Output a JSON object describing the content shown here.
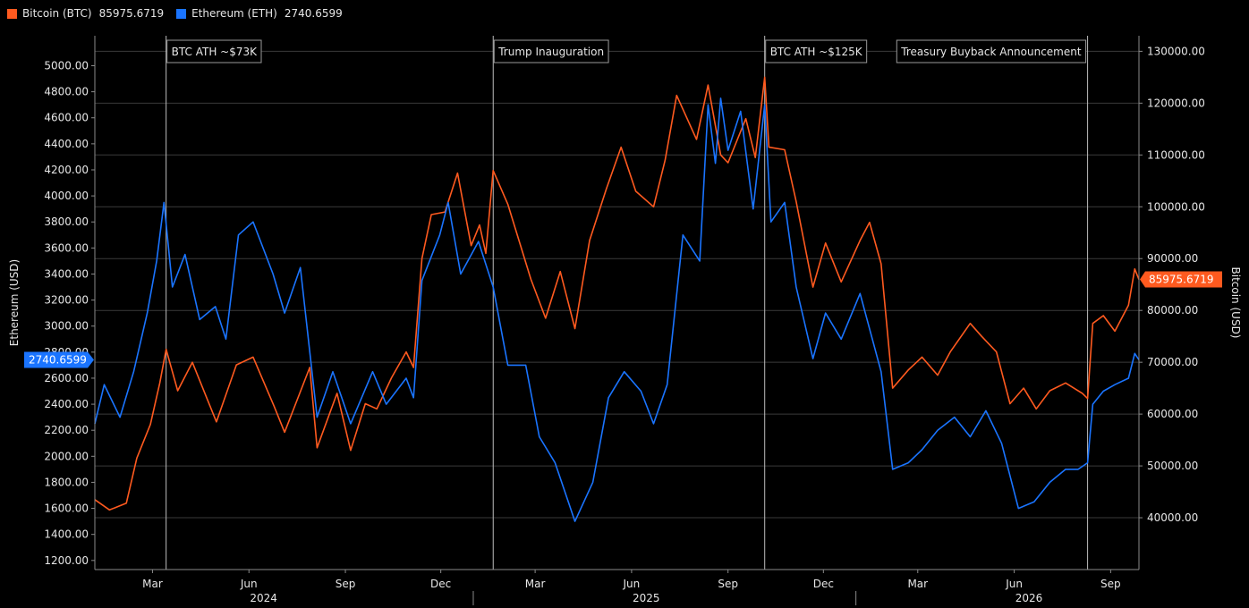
{
  "legend": {
    "btc": {
      "label": "Bitcoin (BTC)",
      "value": "85975.6719",
      "color": "#ff5a1f"
    },
    "eth": {
      "label": "Ethereum (ETH)",
      "value": "2740.6599",
      "color": "#1a74ff"
    }
  },
  "chart_data": {
    "type": "line",
    "left_axis": {
      "label": "Ethereum (USD)",
      "range": [
        1130,
        5230
      ],
      "ticks": [
        "1200.00",
        "1400.00",
        "1600.00",
        "1800.00",
        "2000.00",
        "2200.00",
        "2400.00",
        "2600.00",
        "2800.00",
        "3000.00",
        "3200.00",
        "3400.00",
        "3600.00",
        "3800.00",
        "4000.00",
        "4200.00",
        "4400.00",
        "4600.00",
        "4800.00",
        "5000.00"
      ],
      "last_value_label": "2740.6599"
    },
    "right_axis": {
      "label": "Bitcoin (USD)",
      "range": [
        30000,
        133000
      ],
      "ticks": [
        "40000.00",
        "50000.00",
        "60000.00",
        "70000.00",
        "80000.00",
        "90000.00",
        "100000.00",
        "110000.00",
        "120000.00",
        "130000.00"
      ],
      "last_value_label": "85975.6719"
    },
    "x_axis": {
      "start": "2024-01-06",
      "end": "2026-09-28",
      "month_labels": [
        {
          "label": "Mar",
          "date": "2024-03-01"
        },
        {
          "label": "Jun",
          "date": "2024-06-01"
        },
        {
          "label": "Sep",
          "date": "2024-09-01"
        },
        {
          "label": "Dec",
          "date": "2024-12-01"
        },
        {
          "label": "Mar",
          "date": "2025-03-01"
        },
        {
          "label": "Jun",
          "date": "2025-06-01"
        },
        {
          "label": "Sep",
          "date": "2025-09-01"
        },
        {
          "label": "Dec",
          "date": "2025-12-01"
        },
        {
          "label": "Mar",
          "date": "2026-03-01"
        },
        {
          "label": "Jun",
          "date": "2026-06-01"
        },
        {
          "label": "Sep",
          "date": "2026-09-01"
        }
      ],
      "year_labels": [
        {
          "label": "2024",
          "date": "2024-06-15"
        },
        {
          "label": "2025",
          "date": "2025-06-15"
        },
        {
          "label": "2026",
          "date": "2026-06-15"
        }
      ],
      "year_separators": [
        "2025-01-01",
        "2026-01-01"
      ]
    },
    "grid": true,
    "annotations": [
      {
        "label": "BTC ATH ~$73K",
        "date": "2024-03-14",
        "text_side": "right"
      },
      {
        "label": "Trump Inauguration",
        "date": "2025-01-20",
        "text_side": "right"
      },
      {
        "label": "BTC ATH ~$125K",
        "date": "2025-10-06",
        "text_side": "right"
      },
      {
        "label": "Treasury Buyback Announcement",
        "date": "2026-08-10",
        "text_side": "left"
      }
    ],
    "series": [
      {
        "name": "Bitcoin (BTC)",
        "axis": "right",
        "color": "#ff5a1f",
        "points": [
          [
            "2024-01-06",
            43500
          ],
          [
            "2024-01-20",
            41500
          ],
          [
            "2024-02-05",
            42800
          ],
          [
            "2024-02-15",
            51500
          ],
          [
            "2024-02-28",
            58000
          ],
          [
            "2024-03-08",
            66000
          ],
          [
            "2024-03-14",
            72500
          ],
          [
            "2024-03-25",
            64500
          ],
          [
            "2024-04-08",
            70000
          ],
          [
            "2024-04-20",
            64000
          ],
          [
            "2024-05-01",
            58500
          ],
          [
            "2024-05-20",
            69500
          ],
          [
            "2024-06-05",
            71000
          ],
          [
            "2024-06-25",
            61500
          ],
          [
            "2024-07-05",
            56500
          ],
          [
            "2024-07-29",
            69000
          ],
          [
            "2024-08-05",
            53500
          ],
          [
            "2024-08-24",
            64000
          ],
          [
            "2024-09-06",
            53000
          ],
          [
            "2024-09-20",
            62000
          ],
          [
            "2024-10-01",
            61000
          ],
          [
            "2024-10-15",
            67000
          ],
          [
            "2024-10-29",
            72000
          ],
          [
            "2024-11-05",
            69000
          ],
          [
            "2024-11-13",
            90000
          ],
          [
            "2024-11-22",
            98500
          ],
          [
            "2024-12-05",
            99000
          ],
          [
            "2024-12-17",
            106500
          ],
          [
            "2024-12-30",
            92500
          ],
          [
            "2025-01-07",
            96500
          ],
          [
            "2025-01-13",
            91000
          ],
          [
            "2025-01-20",
            107000
          ],
          [
            "2025-02-03",
            100500
          ],
          [
            "2025-02-25",
            86000
          ],
          [
            "2025-03-11",
            78500
          ],
          [
            "2025-03-25",
            87500
          ],
          [
            "2025-04-08",
            76500
          ],
          [
            "2025-04-22",
            93500
          ],
          [
            "2025-05-08",
            103500
          ],
          [
            "2025-05-22",
            111500
          ],
          [
            "2025-06-05",
            103000
          ],
          [
            "2025-06-22",
            100000
          ],
          [
            "2025-07-03",
            109000
          ],
          [
            "2025-07-14",
            121500
          ],
          [
            "2025-08-02",
            113000
          ],
          [
            "2025-08-13",
            123500
          ],
          [
            "2025-08-25",
            110000
          ],
          [
            "2025-09-01",
            108500
          ],
          [
            "2025-09-18",
            117000
          ],
          [
            "2025-09-27",
            109500
          ],
          [
            "2025-10-06",
            125000
          ],
          [
            "2025-10-10",
            111500
          ],
          [
            "2025-10-25",
            111000
          ],
          [
            "2025-11-05",
            101000
          ],
          [
            "2025-11-21",
            84500
          ],
          [
            "2025-12-03",
            93000
          ],
          [
            "2025-12-18",
            85500
          ],
          [
            "2026-01-05",
            93500
          ],
          [
            "2026-01-14",
            97000
          ],
          [
            "2026-01-25",
            89000
          ],
          [
            "2026-02-05",
            65000
          ],
          [
            "2026-02-20",
            68500
          ],
          [
            "2026-03-05",
            71000
          ],
          [
            "2026-03-20",
            67500
          ],
          [
            "2026-04-01",
            72000
          ],
          [
            "2026-04-20",
            77500
          ],
          [
            "2026-05-01",
            75000
          ],
          [
            "2026-05-15",
            72000
          ],
          [
            "2026-05-28",
            62000
          ],
          [
            "2026-06-10",
            65000
          ],
          [
            "2026-06-22",
            61000
          ],
          [
            "2026-07-05",
            64500
          ],
          [
            "2026-07-20",
            66000
          ],
          [
            "2026-08-05",
            64000
          ],
          [
            "2026-08-10",
            63000
          ],
          [
            "2026-08-15",
            77500
          ],
          [
            "2026-08-25",
            79000
          ],
          [
            "2026-09-05",
            76000
          ],
          [
            "2026-09-18",
            81000
          ],
          [
            "2026-09-24",
            88000
          ],
          [
            "2026-09-28",
            85975.6719
          ]
        ]
      },
      {
        "name": "Ethereum (ETH)",
        "axis": "left",
        "color": "#1a74ff",
        "points": [
          [
            "2024-01-06",
            2250
          ],
          [
            "2024-01-15",
            2550
          ],
          [
            "2024-01-30",
            2300
          ],
          [
            "2024-02-12",
            2650
          ],
          [
            "2024-02-25",
            3100
          ],
          [
            "2024-03-05",
            3500
          ],
          [
            "2024-03-12",
            3950
          ],
          [
            "2024-03-20",
            3300
          ],
          [
            "2024-04-01",
            3550
          ],
          [
            "2024-04-15",
            3050
          ],
          [
            "2024-04-30",
            3150
          ],
          [
            "2024-05-10",
            2900
          ],
          [
            "2024-05-22",
            3700
          ],
          [
            "2024-06-05",
            3800
          ],
          [
            "2024-06-24",
            3400
          ],
          [
            "2024-07-05",
            3100
          ],
          [
            "2024-07-20",
            3450
          ],
          [
            "2024-08-05",
            2300
          ],
          [
            "2024-08-20",
            2650
          ],
          [
            "2024-09-06",
            2250
          ],
          [
            "2024-09-27",
            2650
          ],
          [
            "2024-10-10",
            2400
          ],
          [
            "2024-10-29",
            2600
          ],
          [
            "2024-11-05",
            2450
          ],
          [
            "2024-11-13",
            3350
          ],
          [
            "2024-11-30",
            3700
          ],
          [
            "2024-12-08",
            3950
          ],
          [
            "2024-12-20",
            3400
          ],
          [
            "2025-01-06",
            3650
          ],
          [
            "2025-01-20",
            3300
          ],
          [
            "2025-02-03",
            2700
          ],
          [
            "2025-02-20",
            2700
          ],
          [
            "2025-03-05",
            2150
          ],
          [
            "2025-03-20",
            1950
          ],
          [
            "2025-04-08",
            1500
          ],
          [
            "2025-04-25",
            1800
          ],
          [
            "2025-05-10",
            2450
          ],
          [
            "2025-05-25",
            2650
          ],
          [
            "2025-06-10",
            2500
          ],
          [
            "2025-06-22",
            2250
          ],
          [
            "2025-07-05",
            2550
          ],
          [
            "2025-07-20",
            3700
          ],
          [
            "2025-08-05",
            3500
          ],
          [
            "2025-08-13",
            4700
          ],
          [
            "2025-08-20",
            4250
          ],
          [
            "2025-08-25",
            4750
          ],
          [
            "2025-09-01",
            4350
          ],
          [
            "2025-09-13",
            4650
          ],
          [
            "2025-09-25",
            3900
          ],
          [
            "2025-10-06",
            4700
          ],
          [
            "2025-10-12",
            3800
          ],
          [
            "2025-10-25",
            3950
          ],
          [
            "2025-11-05",
            3300
          ],
          [
            "2025-11-21",
            2750
          ],
          [
            "2025-12-03",
            3100
          ],
          [
            "2025-12-18",
            2900
          ],
          [
            "2026-01-05",
            3250
          ],
          [
            "2026-01-25",
            2650
          ],
          [
            "2026-02-05",
            1900
          ],
          [
            "2026-02-20",
            1950
          ],
          [
            "2026-03-05",
            2050
          ],
          [
            "2026-03-20",
            2200
          ],
          [
            "2026-04-05",
            2300
          ],
          [
            "2026-04-20",
            2150
          ],
          [
            "2026-05-05",
            2350
          ],
          [
            "2026-05-20",
            2100
          ],
          [
            "2026-06-05",
            1600
          ],
          [
            "2026-06-20",
            1650
          ],
          [
            "2026-07-05",
            1800
          ],
          [
            "2026-07-20",
            1900
          ],
          [
            "2026-08-01",
            1900
          ],
          [
            "2026-08-10",
            1950
          ],
          [
            "2026-08-15",
            2400
          ],
          [
            "2026-08-25",
            2500
          ],
          [
            "2026-09-05",
            2550
          ],
          [
            "2026-09-18",
            2600
          ],
          [
            "2026-09-24",
            2790
          ],
          [
            "2026-09-28",
            2740.6599
          ]
        ]
      }
    ]
  }
}
